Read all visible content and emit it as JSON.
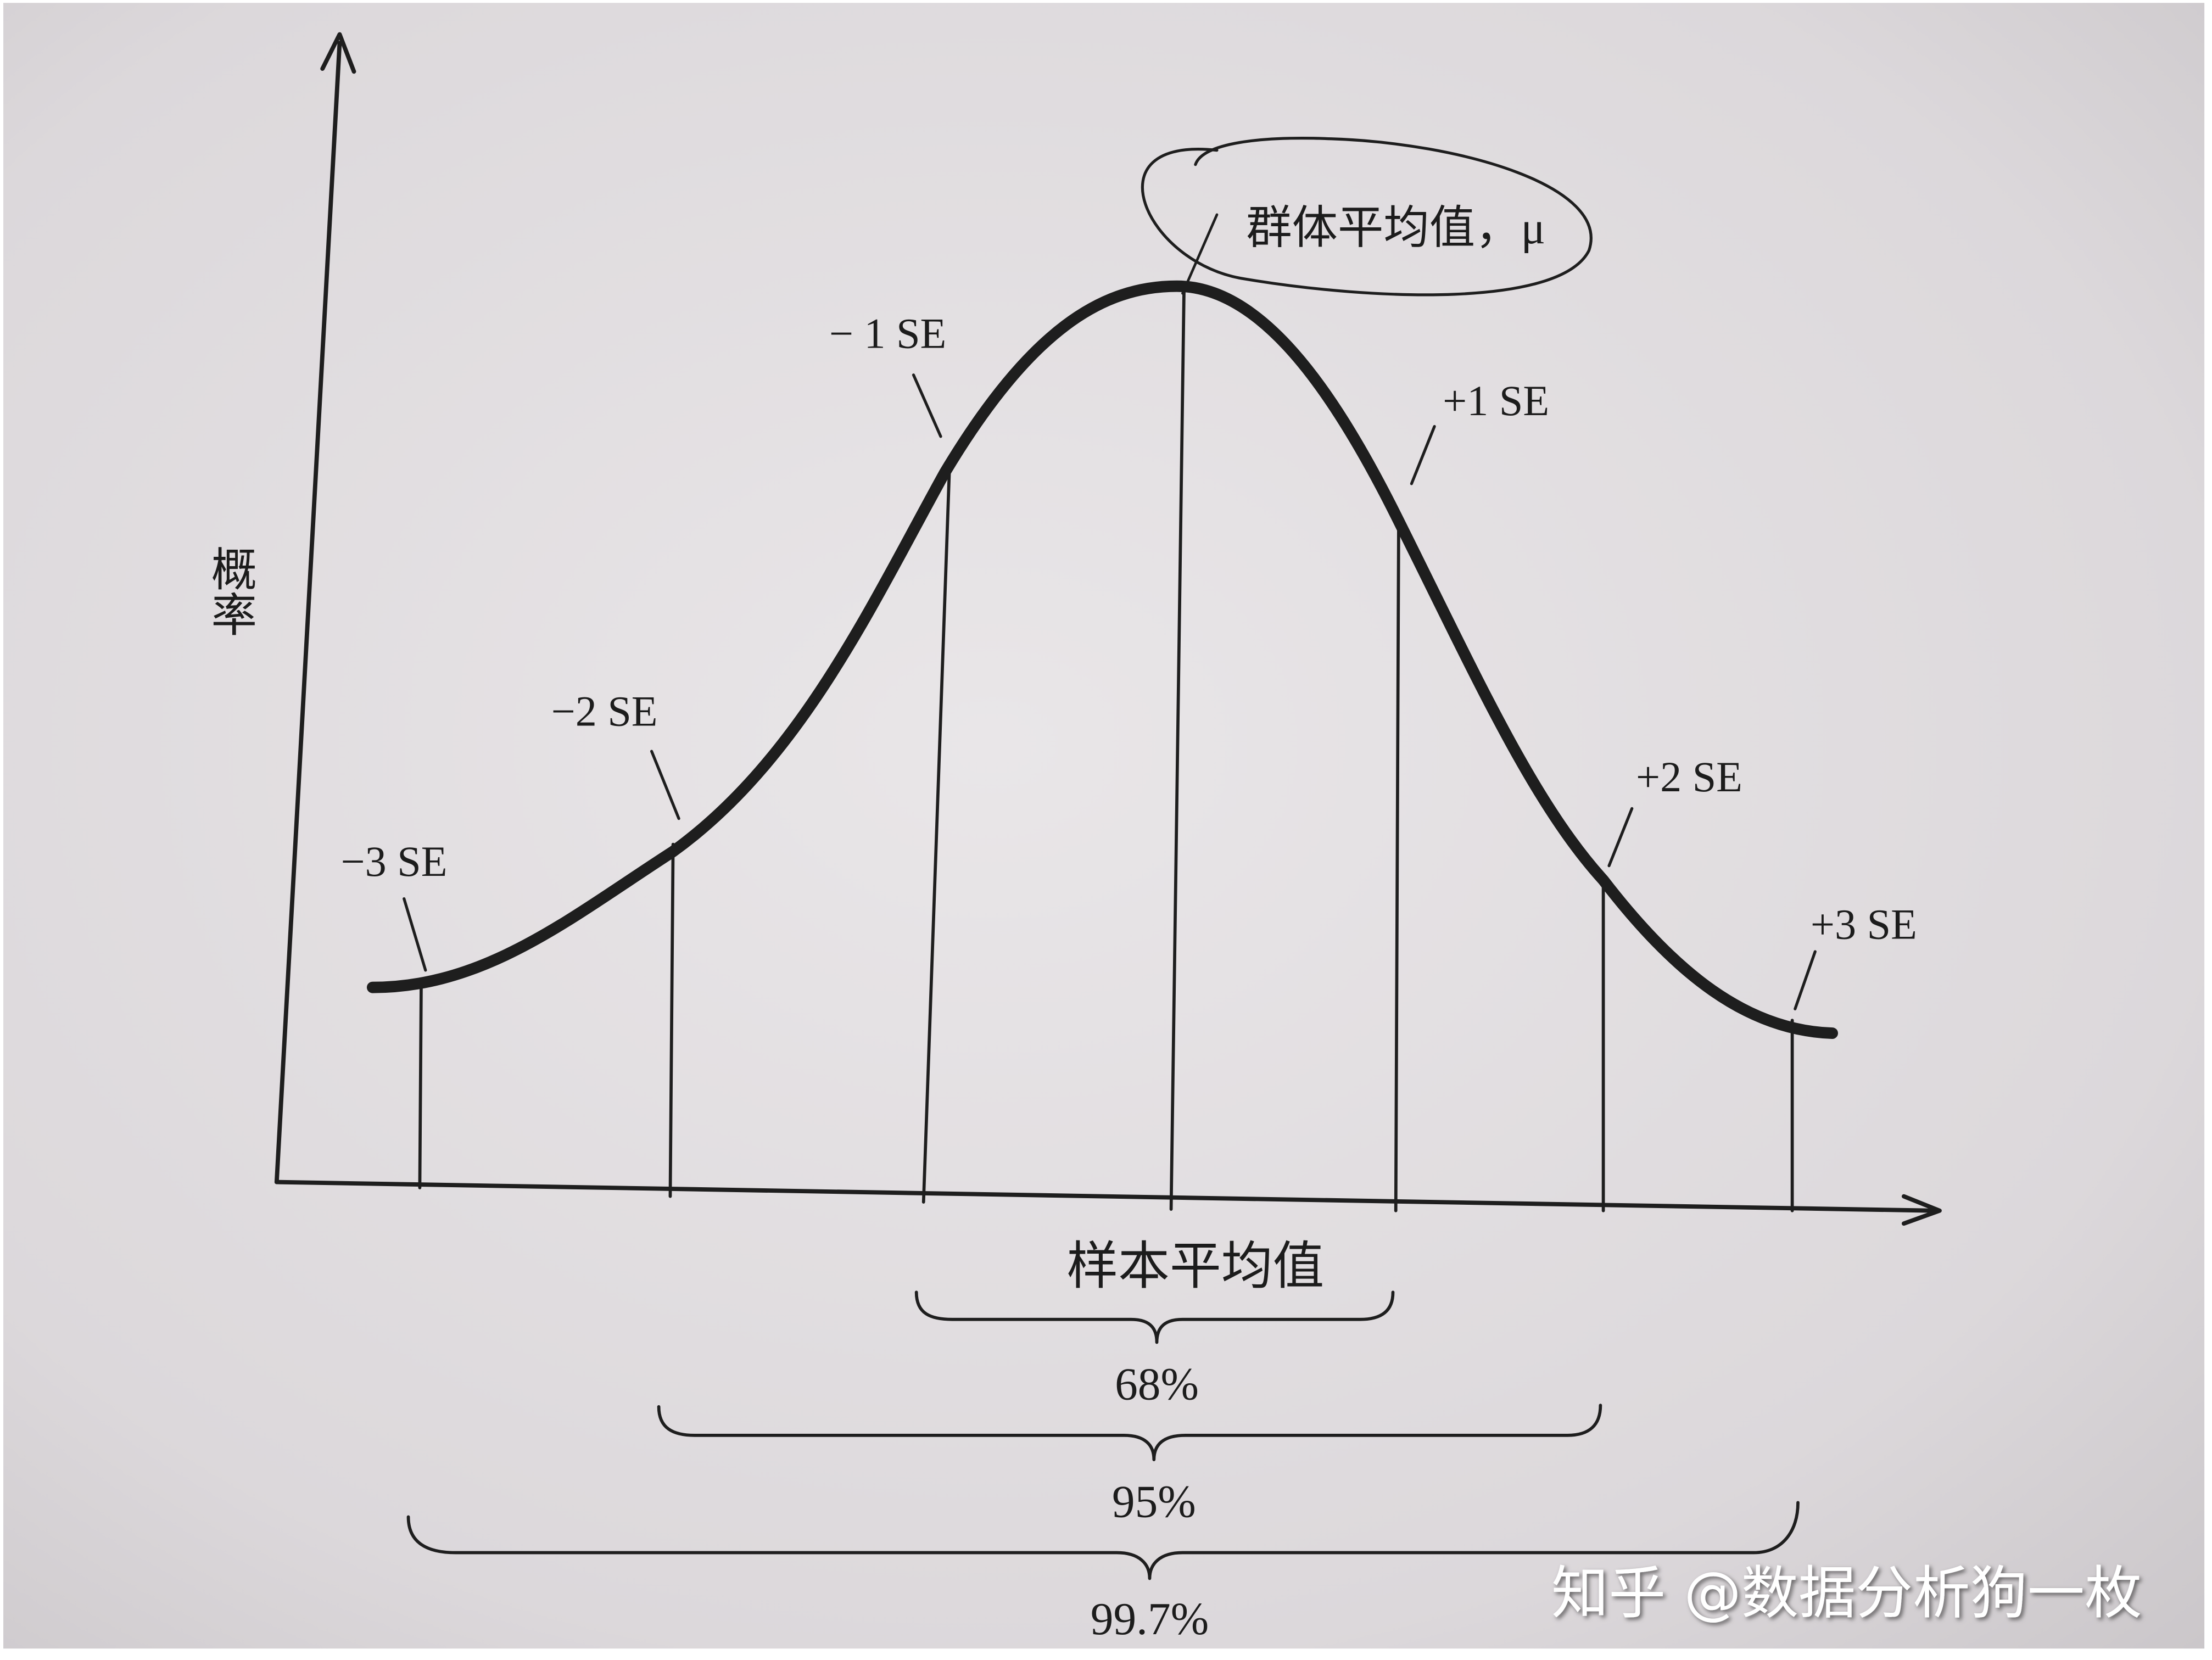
{
  "diagram": {
    "y_axis_label": "概率",
    "x_axis_label": "样本平均值",
    "mean_label": "群体平均值，μ",
    "se_labels": [
      "−3 SE",
      "−2 SE",
      "− 1 SE",
      "+1 SE",
      "+2 SE",
      "+3 SE"
    ],
    "coverage": [
      "68%",
      "95%",
      "99.7%"
    ],
    "watermark": "知乎 @数据分析狗一枚"
  }
}
